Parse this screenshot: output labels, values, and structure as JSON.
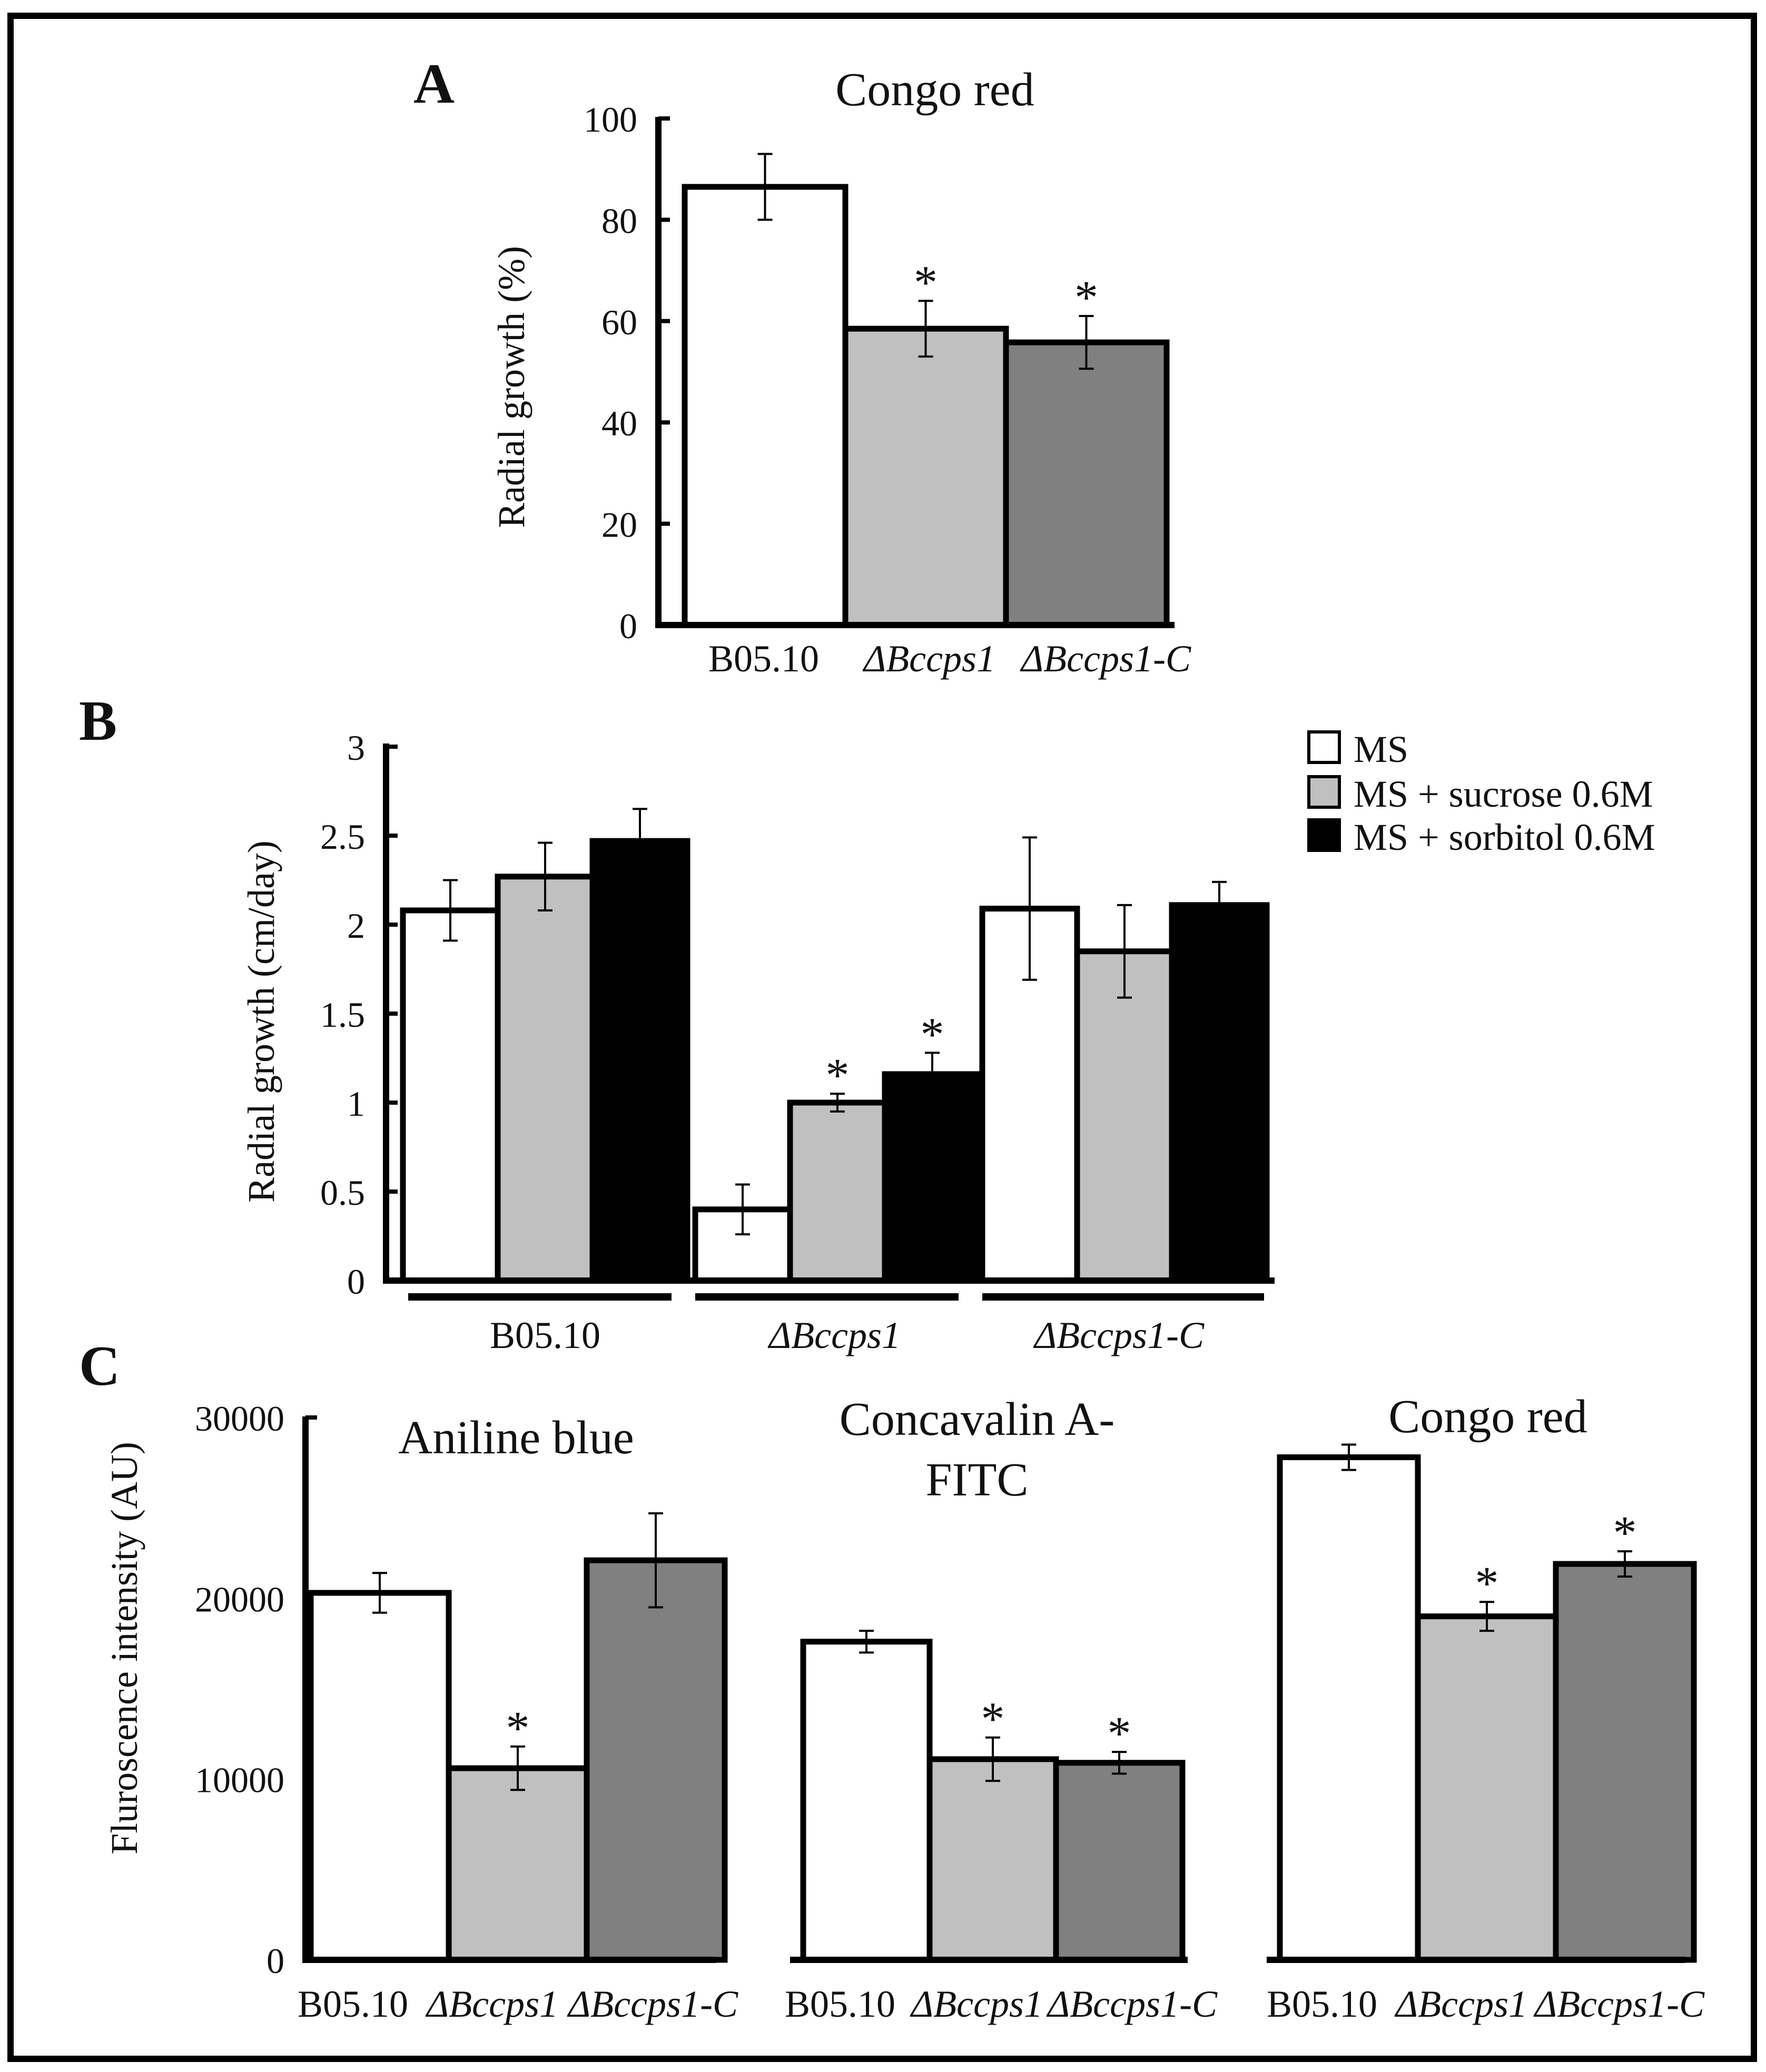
{
  "chart_data": [
    {
      "panel": "A",
      "type": "bar",
      "title": "Congo red",
      "ylabel": "Radial growth  (%)",
      "xlabel": "",
      "ylim": [
        0,
        100
      ],
      "yticks": [
        "0",
        "20",
        "40",
        "60",
        "80",
        "100"
      ],
      "categories": [
        "B05.10",
        "ΔBccps1",
        "ΔBccps1-C"
      ],
      "values": [
        86.5,
        58.5,
        55.8
      ],
      "errors": [
        6.5,
        5.5,
        5.2
      ],
      "significant": [
        "",
        "*",
        "*"
      ],
      "colors": [
        "#ffffff",
        "#c0c0c0",
        "#808080"
      ]
    },
    {
      "panel": "B",
      "type": "bar",
      "title": "",
      "ylabel": "Radial growth (cm/day)",
      "xlabel": "",
      "ylim": [
        0,
        3
      ],
      "yticks": [
        "0",
        "0.5",
        "1",
        "1.5",
        "2",
        "2.5",
        "3"
      ],
      "categories": [
        "B05.10",
        "ΔBccps1",
        "ΔBccps1-C"
      ],
      "legend": {
        "position": "top-right",
        "entries": [
          "MS",
          "MS + sucrose 0.6M",
          "MS + sorbitol 0.6M"
        ]
      },
      "series": [
        {
          "name": "MS",
          "color": "#ffffff",
          "values": [
            2.08,
            0.4,
            2.09
          ],
          "errors": [
            0.17,
            0.14,
            0.4
          ],
          "significant": [
            "",
            "",
            ""
          ]
        },
        {
          "name": "MS + sucrose 0.6M",
          "color": "#c0c0c0",
          "values": [
            2.27,
            1.0,
            1.85
          ],
          "errors": [
            0.19,
            0.05,
            0.26
          ],
          "significant": [
            "",
            "*",
            ""
          ]
        },
        {
          "name": "MS + sorbitol 0.6M",
          "color": "#000000",
          "values": [
            2.47,
            1.16,
            2.11
          ],
          "errors": [
            0.18,
            0.12,
            0.13
          ],
          "significant": [
            "",
            "*",
            ""
          ]
        }
      ]
    },
    {
      "panel": "C",
      "type": "bar",
      "ylabel": "Fluroscence intensity (AU)",
      "xlabel": "",
      "ylim": [
        0,
        30000
      ],
      "yticks": [
        "0",
        "10000",
        "20000",
        "30000"
      ],
      "groups": [
        {
          "title": "Aniline blue",
          "categories": [
            "B05.10",
            "ΔBccps1",
            "ΔBccps1-C"
          ],
          "values": [
            20300,
            10600,
            22100
          ],
          "errors": [
            1100,
            1200,
            2600
          ],
          "significant": [
            "",
            "*",
            ""
          ]
        },
        {
          "title": "Concavalin A-FITC",
          "title_lines": [
            "Concavalin A-",
            "FITC"
          ],
          "categories": [
            "B05.10",
            "ΔBccps1",
            "ΔBccps1-C"
          ],
          "values": [
            17600,
            11100,
            10900
          ],
          "errors": [
            600,
            1200,
            600
          ],
          "significant": [
            "",
            "*",
            "*"
          ]
        },
        {
          "title": "Congo red",
          "categories": [
            "B05.10",
            "ΔBccps1",
            "ΔBccps1-C"
          ],
          "values": [
            27800,
            19000,
            21900
          ],
          "errors": [
            700,
            800,
            700
          ],
          "significant": [
            "",
            "*",
            "*"
          ]
        }
      ],
      "colors": [
        "#ffffff",
        "#c0c0c0",
        "#808080"
      ]
    }
  ]
}
